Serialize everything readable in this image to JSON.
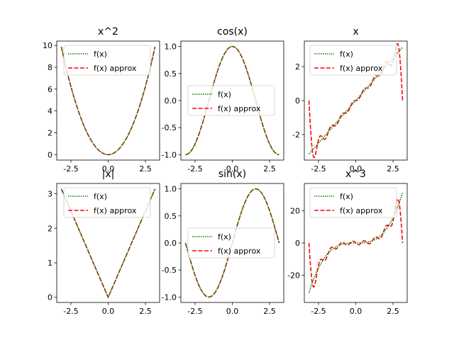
{
  "figure": {
    "background": "#ffffff"
  },
  "chart_data": [
    {
      "type": "line",
      "title": "x^2",
      "f": "x2",
      "xlim": [
        -3.45,
        3.45
      ],
      "ylim": [
        -0.5,
        10.4
      ],
      "xticks": [
        -2.5,
        0.0,
        2.5
      ],
      "xtick_labels": [
        "-2.5",
        "0.0",
        "2.5"
      ],
      "yticks": [
        0,
        2,
        4,
        6,
        8,
        10
      ],
      "ytick_labels": [
        "0",
        "2",
        "4",
        "6",
        "8",
        "10"
      ],
      "legend": "top-center",
      "series": [
        {
          "name": "f(x)",
          "color": "#008000",
          "style": "dotted"
        },
        {
          "name": "f(x) approx",
          "color": "#ff0000",
          "style": "dashed"
        }
      ]
    },
    {
      "type": "line",
      "title": "cos(x)",
      "f": "cos",
      "xlim": [
        -3.45,
        3.45
      ],
      "ylim": [
        -1.1,
        1.1
      ],
      "xticks": [
        -2.5,
        0.0,
        2.5
      ],
      "xtick_labels": [
        "-2.5",
        "0.0",
        "2.5"
      ],
      "yticks": [
        -1.0,
        -0.5,
        0.0,
        0.5,
        1.0
      ],
      "ytick_labels": [
        "-1.0",
        "-0.5",
        "0.0",
        "0.5",
        "1.0"
      ],
      "legend": "center",
      "series": [
        {
          "name": "f(x)",
          "color": "#008000",
          "style": "dotted"
        },
        {
          "name": "f(x) approx",
          "color": "#ff0000",
          "style": "dashed"
        }
      ]
    },
    {
      "type": "line",
      "title": "x",
      "f": "x",
      "xlim": [
        -3.45,
        3.45
      ],
      "ylim": [
        -3.5,
        3.5
      ],
      "xticks": [
        -2.5,
        0.0,
        2.5
      ],
      "xtick_labels": [
        "-2.5",
        "0.0",
        "2.5"
      ],
      "yticks": [
        -2,
        0,
        2
      ],
      "ytick_labels": [
        "-2",
        "0",
        "2"
      ],
      "legend": "top-left",
      "series": [
        {
          "name": "f(x)",
          "color": "#008000",
          "style": "dotted"
        },
        {
          "name": "f(x) approx",
          "color": "#ff0000",
          "style": "dashed"
        }
      ]
    },
    {
      "type": "line",
      "title": "|x|",
      "f": "abs",
      "xlim": [
        -3.45,
        3.45
      ],
      "ylim": [
        -0.15,
        3.3
      ],
      "xticks": [
        -2.5,
        0.0,
        2.5
      ],
      "xtick_labels": [
        "-2.5",
        "0.0",
        "2.5"
      ],
      "yticks": [
        0,
        1,
        2,
        3
      ],
      "ytick_labels": [
        "0",
        "1",
        "2",
        "3"
      ],
      "legend": "top-center",
      "series": [
        {
          "name": "f(x)",
          "color": "#008000",
          "style": "dotted"
        },
        {
          "name": "f(x) approx",
          "color": "#ff0000",
          "style": "dashed"
        }
      ]
    },
    {
      "type": "line",
      "title": "sin(x)",
      "f": "sin",
      "xlim": [
        -3.45,
        3.45
      ],
      "ylim": [
        -1.1,
        1.1
      ],
      "xticks": [
        -2.5,
        0.0,
        2.5
      ],
      "xtick_labels": [
        "-2.5",
        "0.0",
        "2.5"
      ],
      "yticks": [
        -1.0,
        -0.5,
        0.0,
        0.5,
        1.0
      ],
      "ytick_labels": [
        "-1.0",
        "-0.5",
        "0.0",
        "0.5",
        "1.0"
      ],
      "legend": "center",
      "series": [
        {
          "name": "f(x)",
          "color": "#008000",
          "style": "dotted"
        },
        {
          "name": "f(x) approx",
          "color": "#ff0000",
          "style": "dashed"
        }
      ]
    },
    {
      "type": "line",
      "title": "x^3",
      "f": "x3",
      "xlim": [
        -3.45,
        3.45
      ],
      "ylim": [
        -37,
        37
      ],
      "xticks": [
        -2.5,
        0.0,
        2.5
      ],
      "xtick_labels": [
        "-2.5",
        "0.0",
        "2.5"
      ],
      "yticks": [
        -20,
        0,
        20
      ],
      "ytick_labels": [
        "-20",
        "0",
        "20"
      ],
      "legend": "top-left",
      "series": [
        {
          "name": "f(x)",
          "color": "#008000",
          "style": "dotted"
        },
        {
          "name": "f(x) approx",
          "color": "#ff0000",
          "style": "dashed"
        }
      ]
    }
  ]
}
